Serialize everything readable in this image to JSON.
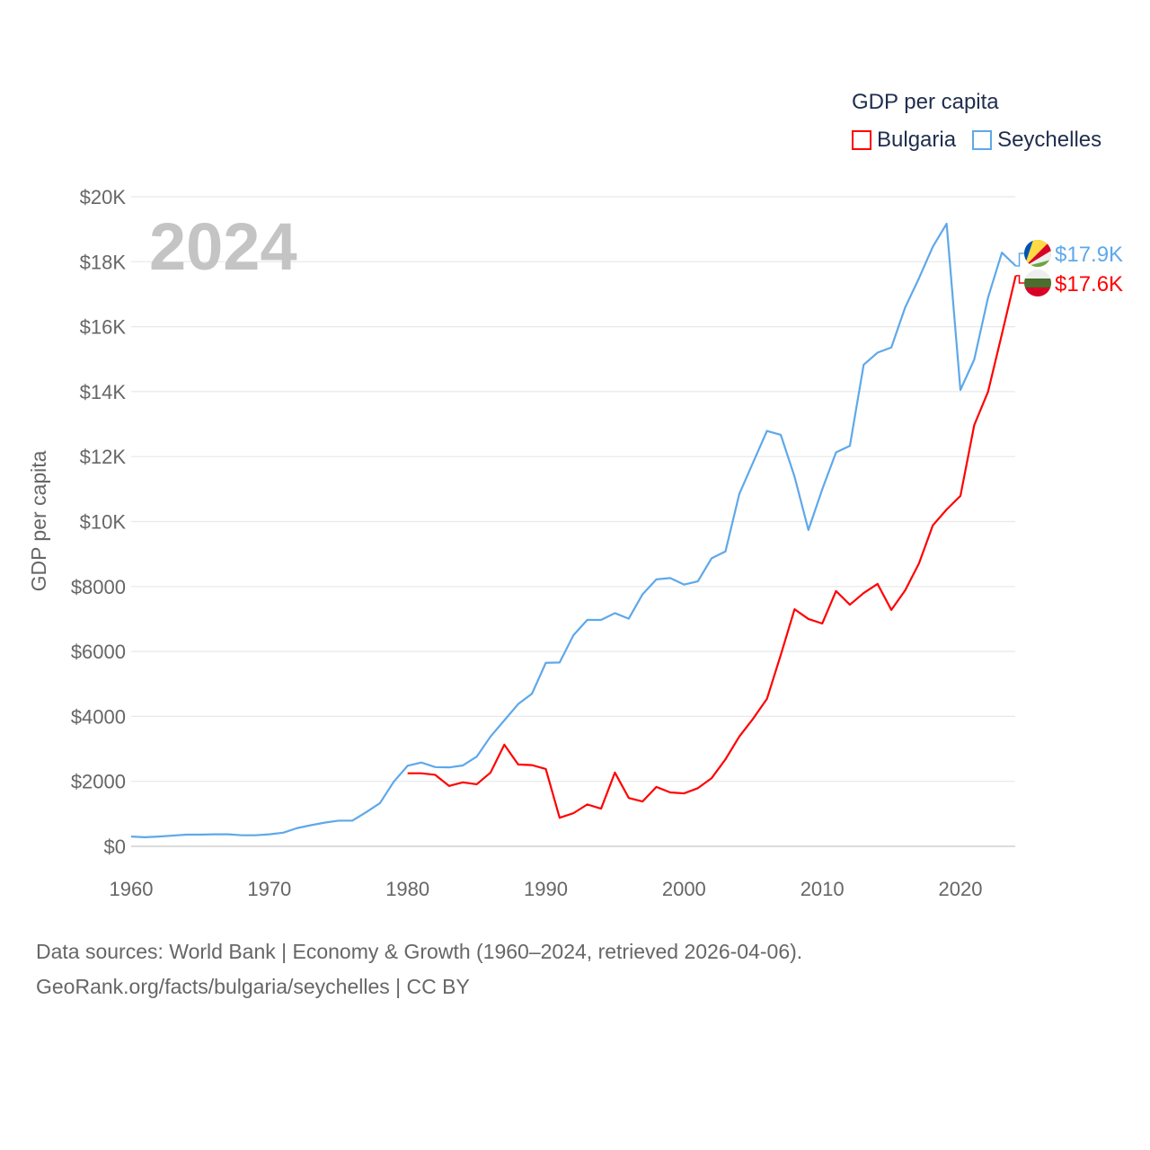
{
  "chart_data": {
    "type": "line",
    "title": "GDP per capita",
    "year_label": "2024",
    "xlabel": "",
    "ylabel": "GDP per capita",
    "xlim": [
      1960,
      2024
    ],
    "ylim": [
      0,
      20000
    ],
    "x_ticks": [
      {
        "value": 1960,
        "label": "1960"
      },
      {
        "value": 1970,
        "label": "1970"
      },
      {
        "value": 1980,
        "label": "1980"
      },
      {
        "value": 1990,
        "label": "1990"
      },
      {
        "value": 2000,
        "label": "2000"
      },
      {
        "value": 2010,
        "label": "2010"
      },
      {
        "value": 2020,
        "label": "2020"
      }
    ],
    "y_ticks": [
      {
        "value": 0,
        "label": "$0"
      },
      {
        "value": 2000,
        "label": "$2000"
      },
      {
        "value": 4000,
        "label": "$4000"
      },
      {
        "value": 6000,
        "label": "$6000"
      },
      {
        "value": 8000,
        "label": "$8000"
      },
      {
        "value": 10000,
        "label": "$10K"
      },
      {
        "value": 12000,
        "label": "$12K"
      },
      {
        "value": 14000,
        "label": "$14K"
      },
      {
        "value": 16000,
        "label": "$16K"
      },
      {
        "value": 18000,
        "label": "$18K"
      },
      {
        "value": 20000,
        "label": "$20K"
      }
    ],
    "grid": true,
    "legend_placement": "top-right",
    "series": [
      {
        "name": "Bulgaria",
        "color": "#ff0000",
        "end_label": "$17.6K",
        "start_year": 1980,
        "values": [
          2250,
          2250,
          2200,
          1860,
          1970,
          1910,
          2270,
          3130,
          2520,
          2500,
          2380,
          880,
          1020,
          1290,
          1160,
          2270,
          1490,
          1380,
          1830,
          1660,
          1630,
          1790,
          2100,
          2680,
          3380,
          3930,
          4540,
          5890,
          7300,
          7000,
          6860,
          7860,
          7440,
          7800,
          8080,
          7280,
          7880,
          8710,
          9880,
          10370,
          10790,
          12970,
          14000,
          15770,
          17570
        ]
      },
      {
        "name": "Seychelles",
        "color": "#5ea8ea",
        "end_label": "$17.9K",
        "start_year": 1960,
        "values": [
          300,
          280,
          300,
          330,
          360,
          360,
          370,
          370,
          340,
          340,
          370,
          420,
          560,
          650,
          730,
          790,
          790,
          1050,
          1330,
          1990,
          2480,
          2580,
          2440,
          2430,
          2490,
          2760,
          3380,
          3880,
          4380,
          4700,
          5650,
          5660,
          6500,
          6970,
          6970,
          7180,
          7010,
          7760,
          8220,
          8260,
          8060,
          8160,
          8870,
          9080,
          10850,
          11820,
          12790,
          12670,
          11380,
          9740,
          10990,
          12130,
          12330,
          14830,
          15200,
          15360,
          16590,
          17490,
          18460,
          19170,
          14050,
          14990,
          16900,
          18280,
          17870
        ]
      }
    ]
  },
  "legend": {
    "title": "GDP per capita",
    "items": [
      "Bulgaria",
      "Seychelles"
    ]
  },
  "footer": {
    "line1": "Data sources: World Bank | Economy & Growth (1960–2024, retrieved 2026-04-06).",
    "line2": "GeoRank.org/facts/bulgaria/seychelles | CC BY"
  }
}
